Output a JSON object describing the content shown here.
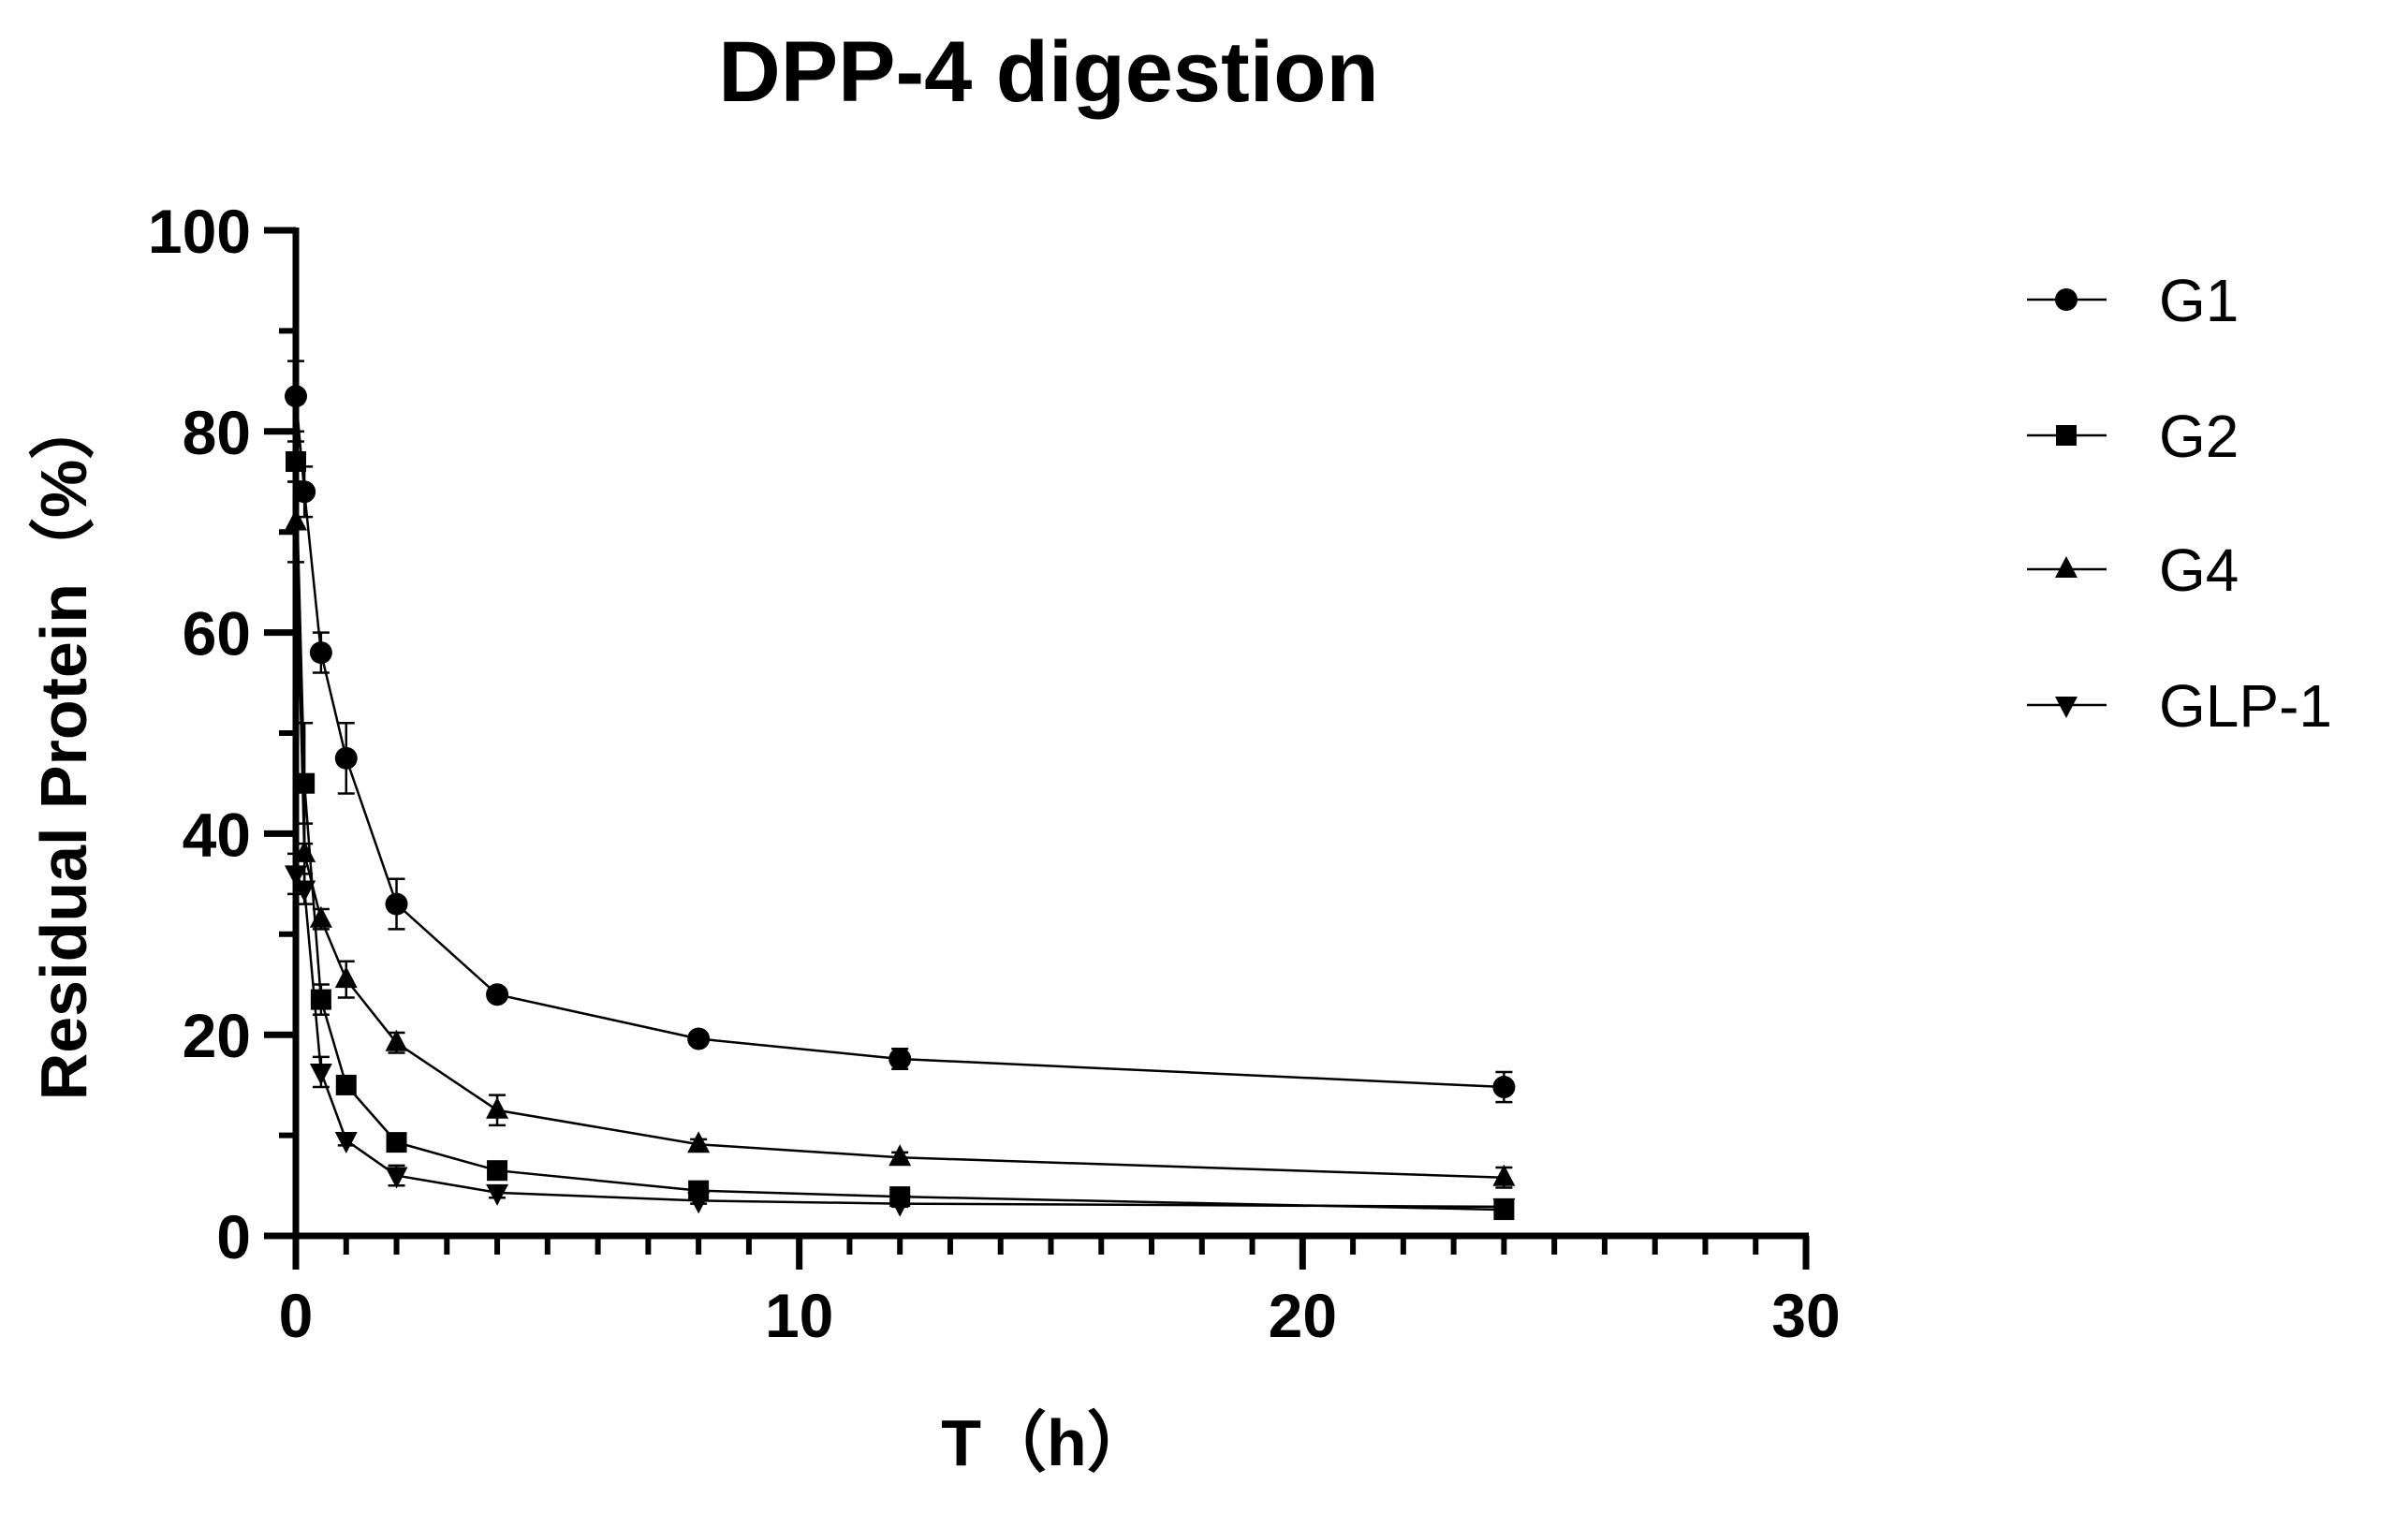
{
  "chart_data": {
    "type": "line",
    "title": "DPP-4 digestion",
    "xlabel": "T（h）",
    "ylabel": "Residual Protein（%）",
    "xlim": [
      0,
      30
    ],
    "ylim": [
      0,
      100
    ],
    "xticks": [
      0,
      10,
      20,
      30
    ],
    "yticks": [
      0,
      20,
      40,
      60,
      80,
      100
    ],
    "grid": false,
    "legend_position": "right",
    "series": [
      {
        "name": "G1",
        "marker": "circle",
        "x": [
          0,
          0.17,
          0.5,
          1,
          2,
          4,
          8,
          12,
          24
        ],
        "values": [
          83.5,
          74,
          58,
          47.5,
          33,
          24,
          19.6,
          17.6,
          14.8
        ],
        "errors": [
          3.5,
          2.5,
          2,
          3.5,
          2.5,
          0.5,
          0.5,
          1,
          1.5
        ]
      },
      {
        "name": "G2",
        "marker": "square",
        "x": [
          0,
          0.17,
          0.5,
          1,
          2,
          4,
          8,
          12,
          24
        ],
        "values": [
          77,
          45,
          23.5,
          15,
          9.3,
          6.5,
          4.5,
          3.9,
          2.6
        ],
        "errors": [
          2,
          6,
          1.5,
          0.5,
          0.5,
          0.5,
          0.5,
          0.5,
          0.3
        ]
      },
      {
        "name": "G4",
        "marker": "triangle-up",
        "x": [
          0,
          0.17,
          0.5,
          1,
          2,
          4,
          8,
          12,
          24
        ],
        "values": [
          71,
          38,
          31.5,
          25.5,
          19.2,
          12.5,
          9.1,
          7.8,
          5.8
        ],
        "errors": [
          4,
          3,
          1,
          1.8,
          1,
          1.5,
          0.5,
          0.5,
          1
        ]
      },
      {
        "name": "GLP-1",
        "marker": "triangle-down",
        "x": [
          0,
          0.17,
          0.5,
          1,
          2,
          4,
          8,
          12,
          24
        ],
        "values": [
          36,
          34.5,
          16.3,
          9.5,
          6,
          4.3,
          3.5,
          3.2,
          2.9
        ],
        "errors": [
          2,
          1.5,
          1.5,
          0.5,
          1,
          0.5,
          0.3,
          0.3,
          0.3
        ]
      }
    ]
  }
}
